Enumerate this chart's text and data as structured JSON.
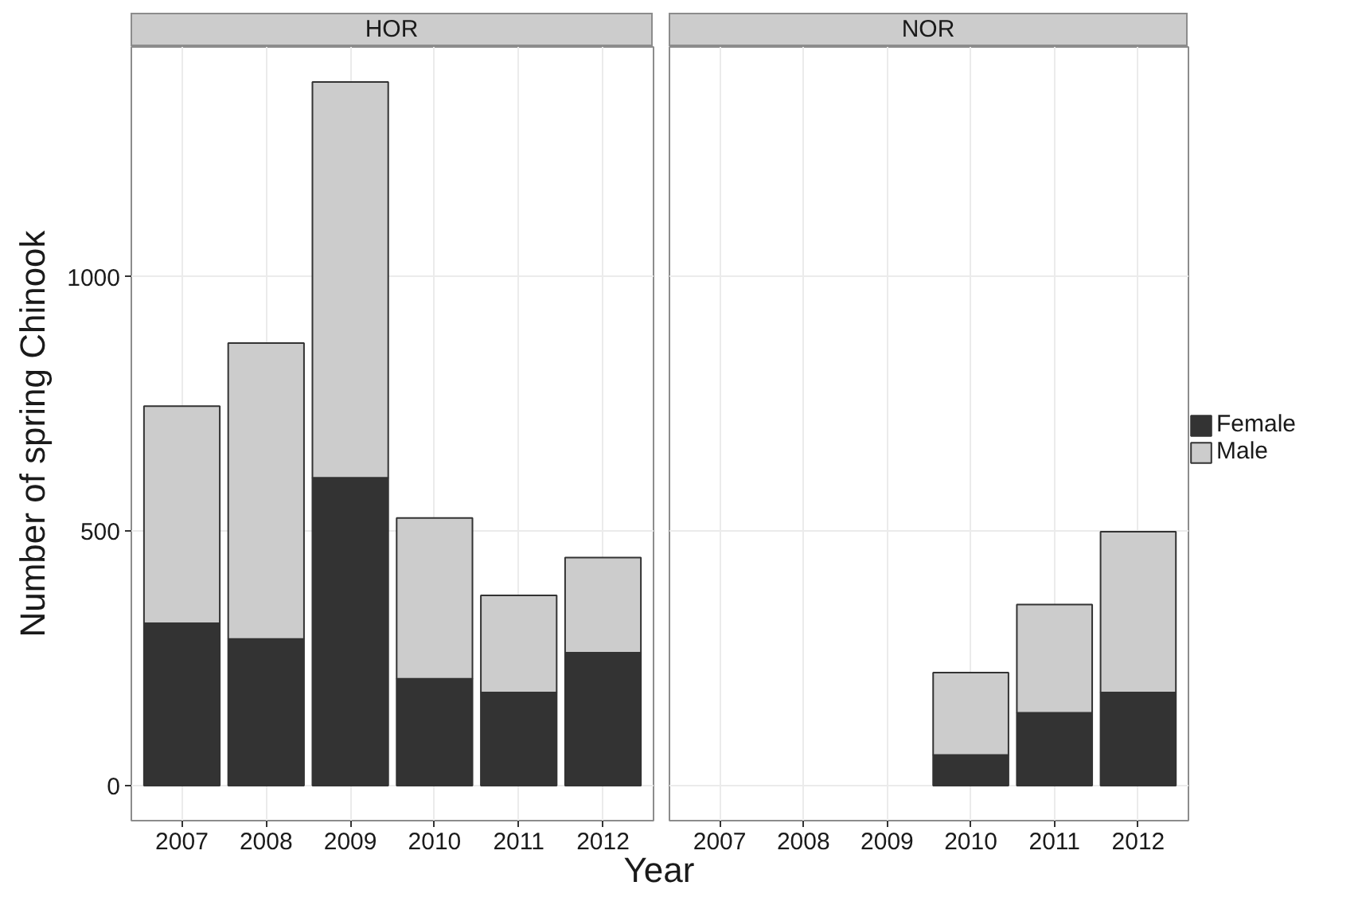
{
  "chart_data": [
    {
      "type": "bar",
      "title": "HOR",
      "stacked": true,
      "categories": [
        "2007",
        "2008",
        "2009",
        "2010",
        "2011",
        "2012"
      ],
      "series": [
        {
          "color": "#333333",
          "values": [
            319,
            288,
            605,
            210,
            183,
            261
          ]
        },
        {
          "color": "#cccccc",
          "values": [
            427,
            582,
            778,
            316,
            191,
            187
          ]
        }
      ],
      "ylim": [
        -69,
        1452
      ],
      "yticks": [
        0,
        500,
        1000
      ],
      "ylabel": "Number of spring Chinook",
      "xlabel": "Year",
      "grid": true
    },
    {
      "type": "bar",
      "title": "NOR",
      "stacked": true,
      "categories": [
        "2007",
        "2008",
        "2009",
        "2010",
        "2011",
        "2012"
      ],
      "series": [
        {
          "name": "Female",
          "color": "#333333",
          "values": [
            null,
            null,
            null,
            60,
            143,
            183
          ]
        },
        {
          "name": "Male",
          "color": "#cccccc",
          "values": [
            null,
            null,
            null,
            162,
            213,
            316
          ]
        }
      ],
      "ylim": [
        -69,
        1452
      ],
      "yticks": [
        0,
        500,
        1000
      ],
      "tick_labels": "x",
      "grid": true,
      "legend": "right"
    }
  ]
}
